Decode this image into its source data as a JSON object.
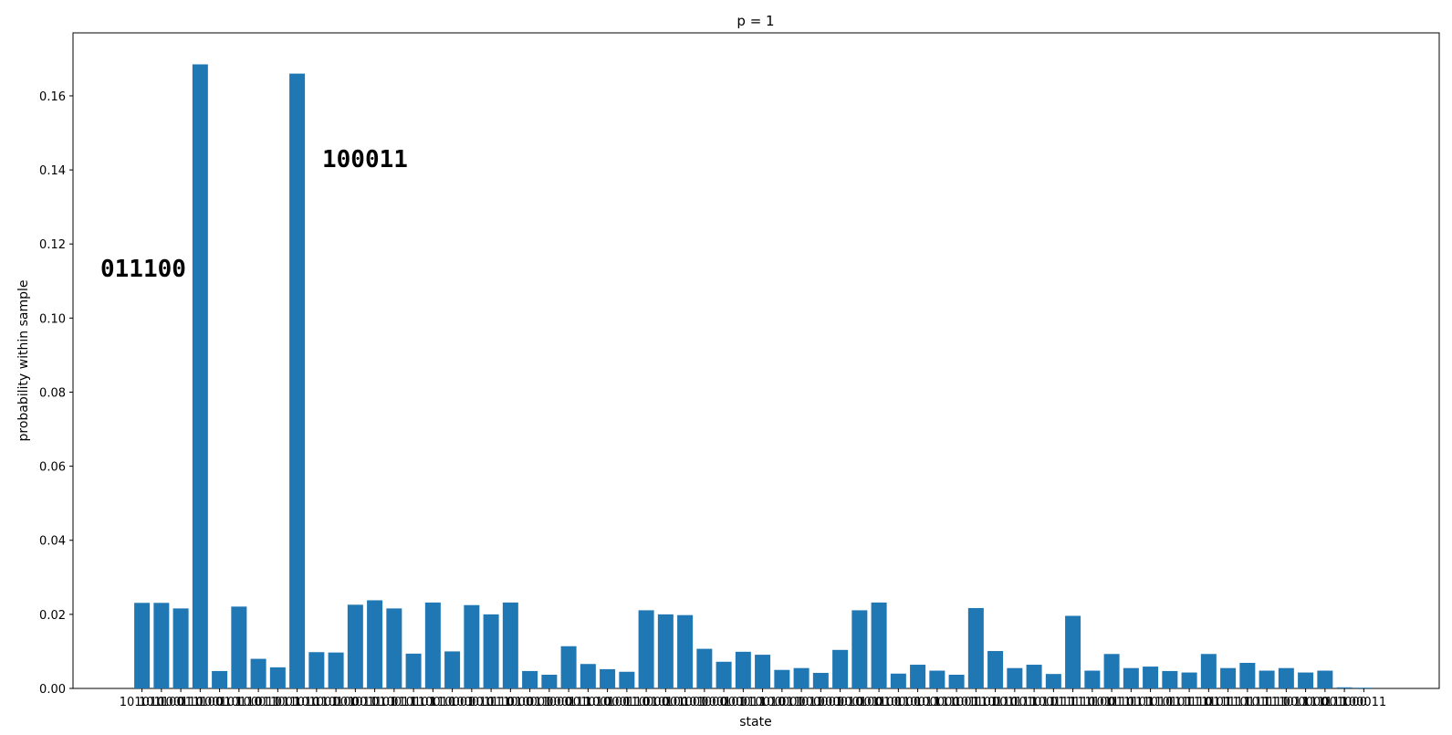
{
  "chart_data": {
    "type": "bar",
    "title": "p = 1",
    "xlabel": "state",
    "ylabel": "probability within sample",
    "ylim": [
      0,
      0.177
    ],
    "yticks": [
      "0.00",
      "0.02",
      "0.04",
      "0.06",
      "0.08",
      "0.10",
      "0.12",
      "0.14",
      "0.16"
    ],
    "bar_color": "#1f77b4",
    "grid": false,
    "categories": [
      "101010",
      "101100",
      "100110",
      "011100",
      "100101",
      "010110",
      "100011",
      "011001",
      "011010",
      "101001",
      "110100",
      "001011",
      "001101",
      "010011",
      "010101",
      "110010",
      "110001",
      "100010",
      "001110",
      "111000",
      "010001",
      "011000",
      "000111",
      "001010",
      "100100",
      "000110",
      "110000",
      "010100",
      "001001",
      "101000",
      "000101",
      "000011",
      "010010",
      "100001",
      "011011",
      "000001",
      "000010",
      "000100",
      "001100",
      "010000",
      "110011",
      "100000",
      "111001",
      "101101",
      "110110",
      "001111",
      "101011",
      "100111",
      "011110",
      "111100",
      "101110",
      "011101",
      "111010",
      "110101",
      "111110",
      "111101",
      "011111",
      "110111",
      "101111",
      "111011",
      "000000",
      "111111",
      "001000",
      "100011"
    ],
    "values": [
      0.0231,
      0.0231,
      0.0216,
      0.1685,
      0.0047,
      0.0221,
      0.008,
      0.0057,
      0.166,
      0.0098,
      0.0097,
      0.0226,
      0.0238,
      0.0216,
      0.0094,
      0.0232,
      0.01,
      0.0225,
      0.02,
      0.0232,
      0.0047,
      0.0037,
      0.0114,
      0.0066,
      0.0052,
      0.0045,
      0.0211,
      0.02,
      0.0198,
      0.0107,
      0.0072,
      0.0099,
      0.0091,
      0.005,
      0.0055,
      0.0042,
      0.0104,
      0.0211,
      0.0232,
      0.004,
      0.0064,
      0.0048,
      0.0037,
      0.0217,
      0.0101,
      0.0055,
      0.0064,
      0.0039,
      0.0196,
      0.0048,
      0.0093,
      0.0055,
      0.0059,
      0.0047,
      0.0043,
      0.0093,
      0.0055,
      0.0069,
      0.0048,
      0.0055,
      0.0043,
      0.0048,
      0.0003,
      0.0002
    ],
    "annotations": [
      "011100",
      "100011"
    ]
  }
}
